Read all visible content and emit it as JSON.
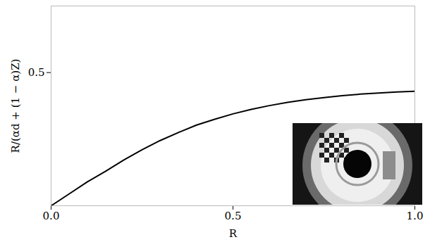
{
  "chart_data": {
    "type": "line",
    "xlabel": "R",
    "ylabel": "R/(αd + (1 − α)Z)",
    "x": [
      0,
      0.05,
      0.1,
      0.15,
      0.2,
      0.25,
      0.3,
      0.35,
      0.4,
      0.45,
      0.5,
      0.55,
      0.6,
      0.65,
      0.7,
      0.75,
      0.8,
      0.85,
      0.9,
      0.95,
      1.0
    ],
    "values": [
      0,
      0.045,
      0.09,
      0.13,
      0.172,
      0.21,
      0.245,
      0.275,
      0.303,
      0.325,
      0.345,
      0.362,
      0.376,
      0.388,
      0.398,
      0.406,
      0.413,
      0.419,
      0.423,
      0.427,
      0.43
    ],
    "color": "#000000",
    "xlim": [
      0,
      1
    ],
    "ylim": [
      0,
      0.75
    ],
    "xticks": [
      {
        "value": 0,
        "label": "0.0"
      },
      {
        "value": 0.5,
        "label": "0.5"
      },
      {
        "value": 1,
        "label": "1.0"
      }
    ],
    "yticks": [
      0.5
    ]
  }
}
